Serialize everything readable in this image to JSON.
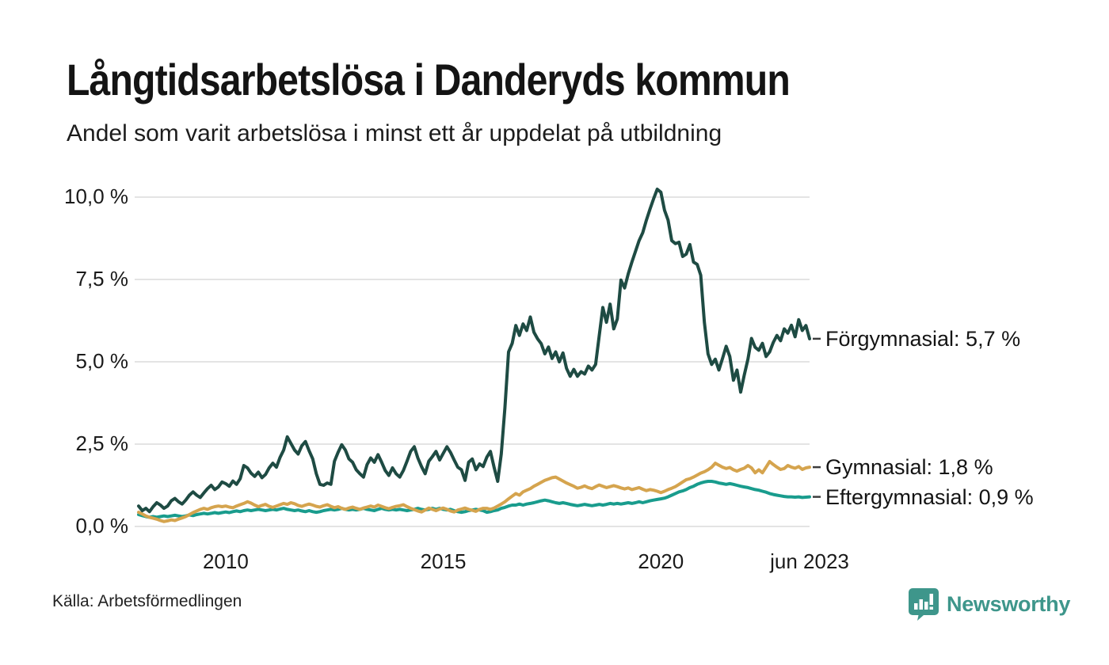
{
  "header": {
    "title": "Långtidsarbetslösa i Danderyds kommun",
    "subtitle": "Andel som varit arbetslösa i minst ett år uppdelat på utbildning"
  },
  "footer": {
    "source": "Källa: Arbetsförmedlingen",
    "brand": "Newsworthy",
    "brand_color": "#3E968B"
  },
  "chart_data": {
    "type": "line",
    "title": "Långtidsarbetslösa i Danderyds kommun",
    "subtitle": "Andel som varit arbetslösa i minst ett år uppdelat på utbildning",
    "xlabel": "",
    "ylabel": "",
    "ylim": [
      0,
      10.4
    ],
    "grid": "horizontal",
    "grid_color": "#E4E4E4",
    "background": "#ffffff",
    "x_start_year": 2008.0,
    "x_step_years": 0.0833333,
    "y_ticks": [
      {
        "value": 10,
        "label": "10,0 %"
      },
      {
        "value": 7.5,
        "label": "7,5 %"
      },
      {
        "value": 5,
        "label": "5,0 %"
      },
      {
        "value": 2.5,
        "label": "2,5 %"
      },
      {
        "value": 0,
        "label": "0,0 %"
      }
    ],
    "x_ticks": [
      {
        "year": 2010,
        "label": "2010"
      },
      {
        "year": 2015,
        "label": "2015"
      },
      {
        "year": 2020,
        "label": "2020"
      },
      {
        "year": 2023.4167,
        "label": "jun 2023"
      }
    ],
    "annotation_dash_color": "#3c3c3c",
    "series": [
      {
        "name": "Förgymnasial",
        "color": "#1E4B43",
        "end_value": 5.7,
        "end_label": "Förgymnasial: 5,7 %",
        "values": [
          0.62,
          0.48,
          0.55,
          0.45,
          0.6,
          0.72,
          0.65,
          0.55,
          0.62,
          0.78,
          0.85,
          0.75,
          0.68,
          0.8,
          0.95,
          1.05,
          0.95,
          0.88,
          1.02,
          1.15,
          1.25,
          1.12,
          1.2,
          1.35,
          1.3,
          1.22,
          1.38,
          1.28,
          1.45,
          1.85,
          1.78,
          1.62,
          1.52,
          1.65,
          1.48,
          1.58,
          1.78,
          1.92,
          1.8,
          2.1,
          2.32,
          2.72,
          2.52,
          2.32,
          2.2,
          2.45,
          2.58,
          2.3,
          2.05,
          1.6,
          1.28,
          1.25,
          1.32,
          1.28,
          1.98,
          2.25,
          2.48,
          2.32,
          2.05,
          1.95,
          1.72,
          1.6,
          1.5,
          1.88,
          2.08,
          1.95,
          2.18,
          1.95,
          1.7,
          1.55,
          1.78,
          1.6,
          1.5,
          1.7,
          1.98,
          2.28,
          2.42,
          2.08,
          1.82,
          1.6,
          1.98,
          2.12,
          2.28,
          2.02,
          2.22,
          2.42,
          2.25,
          2.02,
          1.8,
          1.72,
          1.4,
          1.95,
          2.05,
          1.72,
          1.9,
          1.82,
          2.1,
          2.28,
          1.8,
          1.37,
          2.2,
          3.6,
          5.3,
          5.56,
          6.1,
          5.8,
          6.15,
          5.95,
          6.36,
          5.9,
          5.7,
          5.55,
          5.24,
          5.45,
          5.1,
          5.3,
          5.0,
          5.27,
          4.8,
          4.56,
          4.77,
          4.56,
          4.7,
          4.63,
          4.87,
          4.75,
          4.92,
          5.8,
          6.65,
          6.2,
          6.75,
          6.0,
          6.3,
          7.48,
          7.24,
          7.67,
          8.03,
          8.35,
          8.68,
          8.92,
          9.3,
          9.64,
          9.95,
          10.24,
          10.15,
          9.6,
          9.3,
          8.68,
          8.59,
          8.63,
          8.2,
          8.27,
          8.56,
          8.03,
          7.96,
          7.63,
          6.2,
          5.24,
          4.92,
          5.08,
          4.75,
          5.1,
          5.47,
          5.16,
          4.44,
          4.75,
          4.08,
          4.6,
          5.08,
          5.71,
          5.44,
          5.35,
          5.56,
          5.16,
          5.3,
          5.59,
          5.8,
          5.64,
          6.0,
          5.87,
          6.11,
          5.76,
          6.28,
          5.95,
          6.1,
          5.7
        ]
      },
      {
        "name": "Gymnasial",
        "color": "#D5A44E",
        "end_value": 1.8,
        "end_label": "Gymnasial: 1,8 %",
        "values": [
          0.43,
          0.38,
          0.32,
          0.28,
          0.25,
          0.22,
          0.18,
          0.15,
          0.17,
          0.2,
          0.18,
          0.22,
          0.26,
          0.3,
          0.36,
          0.42,
          0.47,
          0.52,
          0.55,
          0.52,
          0.57,
          0.6,
          0.62,
          0.6,
          0.62,
          0.59,
          0.57,
          0.62,
          0.66,
          0.7,
          0.75,
          0.71,
          0.65,
          0.6,
          0.64,
          0.67,
          0.61,
          0.58,
          0.62,
          0.66,
          0.7,
          0.67,
          0.72,
          0.69,
          0.64,
          0.61,
          0.65,
          0.68,
          0.65,
          0.61,
          0.59,
          0.63,
          0.66,
          0.61,
          0.57,
          0.6,
          0.55,
          0.52,
          0.56,
          0.59,
          0.55,
          0.52,
          0.56,
          0.59,
          0.62,
          0.59,
          0.65,
          0.61,
          0.57,
          0.54,
          0.58,
          0.61,
          0.63,
          0.66,
          0.6,
          0.55,
          0.51,
          0.47,
          0.44,
          0.5,
          0.56,
          0.52,
          0.48,
          0.53,
          0.56,
          0.52,
          0.47,
          0.44,
          0.5,
          0.53,
          0.56,
          0.52,
          0.49,
          0.46,
          0.52,
          0.55,
          0.55,
          0.52,
          0.56,
          0.62,
          0.68,
          0.75,
          0.84,
          0.92,
          1.0,
          0.95,
          1.05,
          1.1,
          1.15,
          1.22,
          1.28,
          1.34,
          1.4,
          1.44,
          1.48,
          1.5,
          1.44,
          1.38,
          1.32,
          1.27,
          1.22,
          1.16,
          1.19,
          1.23,
          1.18,
          1.15,
          1.21,
          1.26,
          1.22,
          1.18,
          1.21,
          1.24,
          1.21,
          1.17,
          1.14,
          1.17,
          1.12,
          1.15,
          1.18,
          1.13,
          1.09,
          1.12,
          1.1,
          1.07,
          1.03,
          1.07,
          1.12,
          1.16,
          1.21,
          1.28,
          1.35,
          1.42,
          1.45,
          1.5,
          1.56,
          1.62,
          1.66,
          1.72,
          1.8,
          1.92,
          1.86,
          1.8,
          1.76,
          1.79,
          1.72,
          1.68,
          1.73,
          1.77,
          1.85,
          1.78,
          1.63,
          1.72,
          1.63,
          1.8,
          1.97,
          1.88,
          1.8,
          1.73,
          1.76,
          1.85,
          1.8,
          1.77,
          1.82,
          1.73,
          1.78,
          1.8
        ]
      },
      {
        "name": "Eftergymnasial",
        "color": "#199C8D",
        "end_value": 0.9,
        "end_label": "Eftergymnasial: 0,9 %",
        "values": [
          0.36,
          0.33,
          0.3,
          0.28,
          0.3,
          0.28,
          0.3,
          0.32,
          0.3,
          0.32,
          0.34,
          0.32,
          0.3,
          0.32,
          0.35,
          0.33,
          0.36,
          0.38,
          0.4,
          0.38,
          0.4,
          0.42,
          0.4,
          0.42,
          0.44,
          0.42,
          0.45,
          0.47,
          0.45,
          0.48,
          0.5,
          0.48,
          0.5,
          0.52,
          0.5,
          0.48,
          0.5,
          0.52,
          0.5,
          0.53,
          0.55,
          0.52,
          0.5,
          0.48,
          0.5,
          0.47,
          0.45,
          0.48,
          0.45,
          0.43,
          0.45,
          0.48,
          0.5,
          0.52,
          0.5,
          0.52,
          0.55,
          0.52,
          0.5,
          0.52,
          0.5,
          0.52,
          0.55,
          0.52,
          0.5,
          0.48,
          0.52,
          0.55,
          0.52,
          0.5,
          0.52,
          0.5,
          0.52,
          0.5,
          0.48,
          0.5,
          0.52,
          0.55,
          0.52,
          0.5,
          0.52,
          0.55,
          0.52,
          0.55,
          0.52,
          0.5,
          0.52,
          0.48,
          0.45,
          0.43,
          0.45,
          0.48,
          0.5,
          0.52,
          0.5,
          0.48,
          0.43,
          0.45,
          0.48,
          0.5,
          0.55,
          0.58,
          0.62,
          0.65,
          0.65,
          0.68,
          0.65,
          0.68,
          0.7,
          0.72,
          0.75,
          0.78,
          0.8,
          0.78,
          0.75,
          0.72,
          0.7,
          0.72,
          0.7,
          0.67,
          0.65,
          0.63,
          0.65,
          0.67,
          0.65,
          0.63,
          0.65,
          0.67,
          0.65,
          0.67,
          0.7,
          0.68,
          0.7,
          0.68,
          0.7,
          0.72,
          0.7,
          0.72,
          0.75,
          0.72,
          0.75,
          0.78,
          0.8,
          0.82,
          0.84,
          0.86,
          0.9,
          0.95,
          1.0,
          1.05,
          1.08,
          1.12,
          1.18,
          1.22,
          1.28,
          1.32,
          1.35,
          1.37,
          1.37,
          1.35,
          1.32,
          1.3,
          1.28,
          1.3,
          1.28,
          1.25,
          1.22,
          1.2,
          1.18,
          1.15,
          1.12,
          1.1,
          1.07,
          1.04,
          1.0,
          0.97,
          0.95,
          0.93,
          0.91,
          0.9,
          0.9,
          0.89,
          0.9,
          0.88,
          0.89,
          0.9
        ]
      }
    ]
  }
}
